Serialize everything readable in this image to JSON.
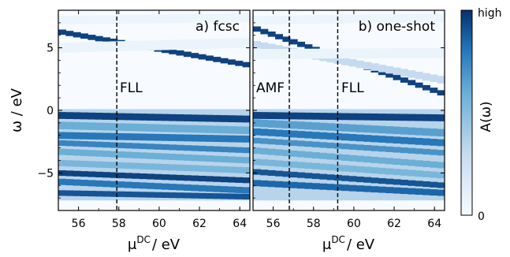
{
  "chart_data": [
    {
      "type": "heatmap",
      "panel_label": "a) fcsc",
      "xlabel_main": "μ",
      "xlabel_sup": "DC",
      "xlabel_unit": "/ eV",
      "ylabel": "ω / eV",
      "xlim": [
        55,
        64.5
      ],
      "ylim": [
        -8,
        8
      ],
      "xticks": [
        "56",
        "58",
        "60",
        "62",
        "64"
      ],
      "yticks": [
        "5",
        "0",
        "−5"
      ],
      "vlines": [
        {
          "x": 57.9,
          "label": "FLL"
        }
      ],
      "bands_upper": [
        {
          "x0": 55,
          "y0": 6.3,
          "x1": 64.5,
          "y1": 3.6,
          "w": 0.42,
          "a": 0.95
        },
        {
          "x0": 55,
          "y0": 5.0,
          "x1": 64.5,
          "y1": 5.4,
          "w": 0.8,
          "a": 0.07
        },
        {
          "x0": 55,
          "y0": 7.2,
          "x1": 64.5,
          "y1": 7.4,
          "w": 0.7,
          "a": 0.06
        }
      ],
      "bands_lower": [
        {
          "x0": 55,
          "y0": -0.4,
          "x1": 64.5,
          "y1": -0.7,
          "w": 0.55,
          "a": 0.95
        },
        {
          "x0": 55,
          "y0": -1.2,
          "x1": 64.5,
          "y1": -1.6,
          "w": 0.6,
          "a": 0.6
        },
        {
          "x0": 55,
          "y0": -2.0,
          "x1": 64.5,
          "y1": -2.3,
          "w": 0.55,
          "a": 0.8
        },
        {
          "x0": 55,
          "y0": -2.6,
          "x1": 64.5,
          "y1": -3.2,
          "w": 0.45,
          "a": 0.75
        },
        {
          "x0": 55,
          "y0": -3.3,
          "x1": 64.5,
          "y1": -4.0,
          "w": 0.5,
          "a": 0.6
        },
        {
          "x0": 55,
          "y0": -4.2,
          "x1": 64.5,
          "y1": -4.8,
          "w": 0.5,
          "a": 0.55
        },
        {
          "x0": 55,
          "y0": -5.0,
          "x1": 64.5,
          "y1": -5.6,
          "w": 0.45,
          "a": 0.95
        },
        {
          "x0": 55,
          "y0": -5.7,
          "x1": 64.5,
          "y1": -6.4,
          "w": 0.5,
          "a": 0.8
        },
        {
          "x0": 55,
          "y0": -6.6,
          "x1": 64.5,
          "y1": -6.9,
          "w": 0.45,
          "a": 0.9
        }
      ],
      "lower_fill": {
        "y0": -7.2,
        "y1": 0.1,
        "a": 0.35
      }
    },
    {
      "type": "heatmap",
      "panel_label": "b) one-shot",
      "xlabel_main": "μ",
      "xlabel_sup": "DC",
      "xlabel_unit": "/ eV",
      "xlim": [
        55,
        64.5
      ],
      "ylim": [
        -8,
        8
      ],
      "xticks": [
        "56",
        "58",
        "60",
        "62",
        "64"
      ],
      "vlines": [
        {
          "x": 56.8,
          "label": "AMF"
        },
        {
          "x": 59.2,
          "label": "FLL"
        }
      ],
      "bands_upper": [
        {
          "x0": 55,
          "y0": 6.6,
          "x1": 64.5,
          "y1": 1.3,
          "w": 0.42,
          "a": 0.95
        },
        {
          "x0": 55,
          "y0": 5.3,
          "x1": 64.5,
          "y1": 2.4,
          "w": 0.6,
          "a": 0.3
        },
        {
          "x0": 55,
          "y0": 4.5,
          "x1": 64.5,
          "y1": 4.6,
          "w": 0.8,
          "a": 0.07
        },
        {
          "x0": 55,
          "y0": 7.2,
          "x1": 64.5,
          "y1": 7.4,
          "w": 0.7,
          "a": 0.06
        }
      ],
      "bands_lower": [
        {
          "x0": 55,
          "y0": -0.4,
          "x1": 64.5,
          "y1": -0.6,
          "w": 0.55,
          "a": 0.95
        },
        {
          "x0": 55,
          "y0": -1.0,
          "x1": 64.5,
          "y1": -1.8,
          "w": 0.6,
          "a": 0.65
        },
        {
          "x0": 55,
          "y0": -1.7,
          "x1": 64.5,
          "y1": -2.6,
          "w": 0.55,
          "a": 0.8
        },
        {
          "x0": 55,
          "y0": -2.4,
          "x1": 64.5,
          "y1": -3.4,
          "w": 0.45,
          "a": 0.7
        },
        {
          "x0": 55,
          "y0": -3.2,
          "x1": 64.5,
          "y1": -4.4,
          "w": 0.5,
          "a": 0.6
        },
        {
          "x0": 55,
          "y0": -4.1,
          "x1": 64.5,
          "y1": -5.2,
          "w": 0.5,
          "a": 0.55
        },
        {
          "x0": 55,
          "y0": -4.9,
          "x1": 64.5,
          "y1": -6.0,
          "w": 0.45,
          "a": 0.9
        },
        {
          "x0": 55,
          "y0": -5.8,
          "x1": 64.5,
          "y1": -6.6,
          "w": 0.5,
          "a": 0.85
        }
      ],
      "lower_fill": {
        "y0": -7.2,
        "y1": 0.1,
        "a": 0.35
      }
    }
  ],
  "colorbar": {
    "label": "A(ω)",
    "high_label": "high",
    "low_label": "0",
    "colors": [
      "#f7fbff",
      "#c6dbef",
      "#6baed6",
      "#2171b5",
      "#08306b"
    ]
  }
}
